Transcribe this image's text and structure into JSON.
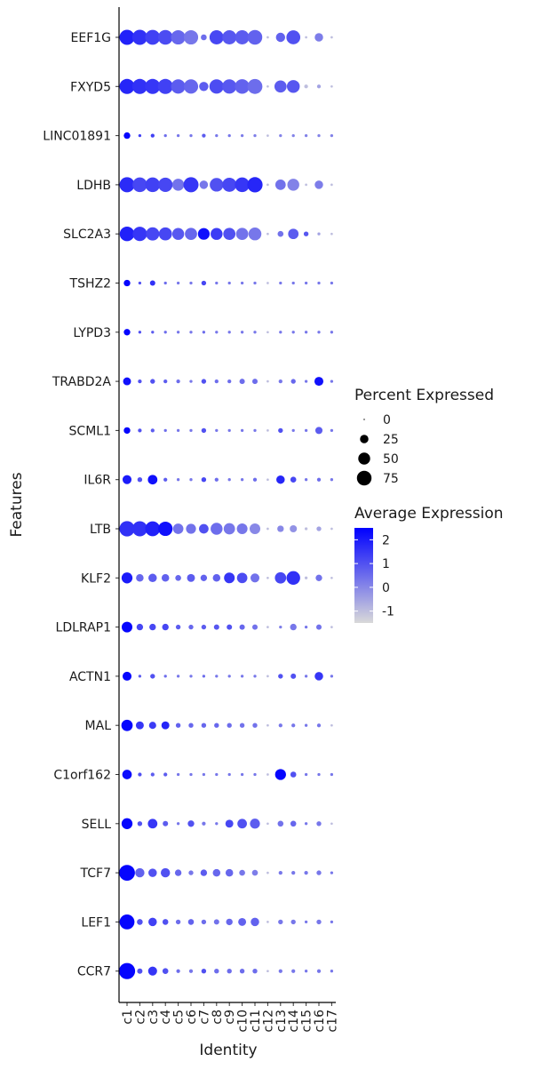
{
  "chart_data": {
    "type": "dotplot",
    "xlabel": "Identity",
    "ylabel": "Features",
    "clusters": [
      "c1",
      "c2",
      "c3",
      "c4",
      "c5",
      "c6",
      "c7",
      "c8",
      "c9",
      "c10",
      "c11",
      "c12",
      "c13",
      "c14",
      "c15",
      "c16",
      "c17"
    ],
    "features": [
      "EEF1G",
      "FXYD5",
      "LINC01891",
      "LDHB",
      "SLC2A3",
      "TSHZ2",
      "LYPD3",
      "TRABD2A",
      "SCML1",
      "IL6R",
      "LTB",
      "KLF2",
      "LDLRAP1",
      "ACTN1",
      "MAL",
      "C1orf162",
      "SELL",
      "TCF7",
      "LEF1",
      "CCR7"
    ],
    "percent_expressed": [
      [
        80,
        80,
        78,
        75,
        72,
        72,
        12,
        70,
        70,
        70,
        75,
        2,
        30,
        68,
        2,
        25,
        2
      ],
      [
        80,
        80,
        80,
        80,
        72,
        72,
        30,
        72,
        72,
        75,
        78,
        2,
        52,
        58,
        5,
        5,
        2
      ],
      [
        15,
        3,
        5,
        3,
        3,
        3,
        5,
        3,
        3,
        3,
        3,
        2,
        3,
        3,
        3,
        3,
        3
      ],
      [
        80,
        75,
        75,
        72,
        50,
        80,
        25,
        65,
        70,
        75,
        82,
        2,
        38,
        50,
        2,
        25,
        2
      ],
      [
        75,
        72,
        62,
        60,
        50,
        52,
        48,
        50,
        52,
        52,
        58,
        2,
        12,
        38,
        8,
        3,
        2
      ],
      [
        15,
        3,
        10,
        3,
        3,
        3,
        8,
        3,
        3,
        3,
        3,
        2,
        3,
        3,
        3,
        3,
        3
      ],
      [
        15,
        3,
        3,
        3,
        3,
        3,
        3,
        3,
        3,
        3,
        3,
        2,
        3,
        3,
        3,
        3,
        3
      ],
      [
        22,
        5,
        8,
        5,
        5,
        3,
        8,
        5,
        5,
        10,
        10,
        2,
        5,
        8,
        3,
        28,
        3
      ],
      [
        15,
        5,
        5,
        3,
        3,
        3,
        8,
        3,
        3,
        3,
        3,
        2,
        8,
        3,
        3,
        18,
        3
      ],
      [
        28,
        8,
        32,
        5,
        3,
        3,
        8,
        5,
        3,
        3,
        5,
        2,
        25,
        12,
        3,
        5,
        3
      ],
      [
        82,
        80,
        78,
        72,
        38,
        35,
        32,
        50,
        45,
        40,
        40,
        2,
        15,
        18,
        3,
        8,
        2
      ],
      [
        42,
        20,
        25,
        20,
        12,
        22,
        15,
        20,
        40,
        38,
        28,
        2,
        45,
        65,
        3,
        15,
        2
      ],
      [
        40,
        15,
        15,
        15,
        8,
        8,
        8,
        10,
        10,
        10,
        10,
        2,
        3,
        15,
        3,
        10,
        2
      ],
      [
        28,
        3,
        8,
        3,
        3,
        3,
        3,
        3,
        3,
        3,
        3,
        2,
        8,
        10,
        3,
        25,
        3
      ],
      [
        45,
        22,
        18,
        22,
        8,
        8,
        8,
        8,
        8,
        8,
        8,
        2,
        5,
        5,
        3,
        5,
        2
      ],
      [
        32,
        5,
        5,
        5,
        3,
        3,
        3,
        3,
        3,
        3,
        3,
        2,
        42,
        12,
        3,
        3,
        3
      ],
      [
        42,
        8,
        32,
        10,
        3,
        15,
        5,
        3,
        22,
        32,
        35,
        2,
        12,
        12,
        3,
        8,
        2
      ],
      [
        88,
        30,
        25,
        30,
        15,
        8,
        15,
        20,
        20,
        12,
        12,
        2,
        5,
        5,
        5,
        8,
        3
      ],
      [
        78,
        12,
        25,
        12,
        8,
        12,
        8,
        10,
        15,
        22,
        25,
        2,
        8,
        8,
        3,
        8,
        3
      ],
      [
        92,
        10,
        28,
        12,
        5,
        5,
        8,
        8,
        8,
        8,
        8,
        2,
        5,
        5,
        3,
        5,
        3
      ]
    ],
    "average_expression": [
      [
        1.9,
        1.6,
        1.3,
        1.1,
        0.6,
        0.3,
        0.5,
        1.2,
        0.9,
        0.8,
        0.7,
        -1.0,
        0.7,
        1.0,
        -1.0,
        0.2,
        -1.0
      ],
      [
        1.8,
        1.6,
        1.5,
        1.3,
        0.8,
        0.6,
        0.8,
        1.1,
        0.9,
        0.7,
        0.5,
        -1.0,
        0.8,
        0.9,
        -1.0,
        -0.5,
        -1.0
      ],
      [
        2.4,
        1.3,
        1.3,
        0.5,
        0.3,
        0.3,
        0.8,
        0.3,
        0.3,
        0.2,
        0.2,
        -1.0,
        0.1,
        0.1,
        0.1,
        0.1,
        0.1
      ],
      [
        1.7,
        1.2,
        1.3,
        1.2,
        0.4,
        1.5,
        0.3,
        1.0,
        1.2,
        1.5,
        1.8,
        -1.0,
        0.4,
        0.1,
        -1.0,
        0.2,
        -1.0
      ],
      [
        1.9,
        1.5,
        1.2,
        1.2,
        0.9,
        0.6,
        2.2,
        1.4,
        1.0,
        0.4,
        0.3,
        -1.0,
        0.4,
        0.8,
        0.9,
        -0.5,
        -1.0
      ],
      [
        2.4,
        1.0,
        1.6,
        0.5,
        0.3,
        0.3,
        1.2,
        0.3,
        0.3,
        0.3,
        0.3,
        -1.0,
        0.3,
        0.3,
        0.3,
        0.3,
        0.3
      ],
      [
        2.4,
        1.0,
        0.8,
        0.5,
        0.3,
        0.3,
        0.5,
        0.3,
        0.3,
        0.3,
        0.3,
        -1.0,
        0.3,
        0.3,
        0.3,
        0.3,
        0.3
      ],
      [
        2.2,
        1.0,
        1.0,
        0.8,
        0.5,
        0.3,
        1.0,
        0.5,
        0.5,
        0.5,
        0.5,
        -1.0,
        0.3,
        0.6,
        0.3,
        2.2,
        0.3
      ],
      [
        2.4,
        1.0,
        0.8,
        0.5,
        0.3,
        0.3,
        1.0,
        0.3,
        0.3,
        0.3,
        0.3,
        -1.0,
        1.0,
        0.3,
        0.3,
        0.8,
        0.3
      ],
      [
        2.0,
        1.0,
        2.2,
        0.8,
        0.3,
        0.3,
        1.2,
        0.5,
        0.3,
        0.3,
        0.5,
        -1.0,
        1.8,
        1.2,
        0.3,
        0.5,
        0.3
      ],
      [
        1.6,
        1.6,
        1.9,
        2.2,
        0.4,
        0.4,
        1.0,
        0.5,
        0.3,
        0.3,
        0.0,
        -1.0,
        0.0,
        -0.2,
        -1.0,
        -0.5,
        -1.0
      ],
      [
        2.0,
        0.6,
        0.8,
        0.7,
        0.6,
        0.8,
        0.7,
        0.7,
        1.5,
        1.1,
        0.4,
        -1.0,
        1.2,
        1.6,
        -1.0,
        0.4,
        -1.0
      ],
      [
        2.4,
        1.2,
        1.2,
        1.2,
        0.8,
        0.6,
        0.8,
        0.9,
        1.0,
        0.6,
        0.4,
        -1.0,
        0.2,
        0.3,
        0.3,
        0.4,
        -1.0
      ],
      [
        2.4,
        0.8,
        1.0,
        0.5,
        0.3,
        0.3,
        0.5,
        0.3,
        0.3,
        0.3,
        0.3,
        -1.0,
        1.0,
        1.0,
        0.3,
        1.5,
        0.3
      ],
      [
        2.4,
        1.5,
        1.4,
        1.8,
        0.7,
        0.6,
        0.6,
        0.6,
        0.5,
        0.4,
        0.4,
        -1.0,
        0.3,
        0.3,
        0.3,
        0.3,
        -1.0
      ],
      [
        2.3,
        1.0,
        0.8,
        0.8,
        0.3,
        0.3,
        0.3,
        0.3,
        0.3,
        0.3,
        0.3,
        -1.0,
        2.4,
        1.0,
        0.3,
        0.3,
        0.3
      ],
      [
        2.4,
        1.0,
        1.5,
        0.8,
        0.3,
        1.0,
        0.3,
        0.3,
        1.2,
        1.0,
        0.8,
        -1.0,
        0.4,
        0.6,
        0.3,
        0.3,
        -1.0
      ],
      [
        2.4,
        0.7,
        1.0,
        1.0,
        0.6,
        0.3,
        0.8,
        0.6,
        0.6,
        0.3,
        0.2,
        -1.0,
        0.3,
        0.3,
        0.3,
        0.3,
        0.3
      ],
      [
        2.4,
        1.0,
        1.3,
        1.0,
        0.5,
        0.7,
        0.5,
        0.4,
        0.6,
        0.7,
        0.7,
        -1.0,
        0.3,
        0.3,
        0.3,
        0.3,
        0.3
      ],
      [
        2.4,
        1.0,
        1.5,
        1.0,
        0.5,
        0.3,
        1.0,
        0.5,
        0.5,
        0.5,
        0.5,
        -1.0,
        0.3,
        0.3,
        0.3,
        0.3,
        0.3
      ]
    ],
    "legend_size": {
      "title": "Percent Expressed",
      "values": [
        0,
        25,
        50,
        75
      ],
      "labels": [
        "0",
        "25",
        "50",
        "75"
      ]
    },
    "legend_color": {
      "title": "Average Expression",
      "range": [
        -1.5,
        2.5
      ],
      "ticks": [
        2,
        1,
        0,
        -1
      ],
      "labels": [
        "2",
        "1",
        "0",
        "-1"
      ],
      "low_color": "#d9d9d9",
      "high_color": "#0000ff"
    },
    "placement": "legend right of plot, vertically centered",
    "grid": false
  }
}
